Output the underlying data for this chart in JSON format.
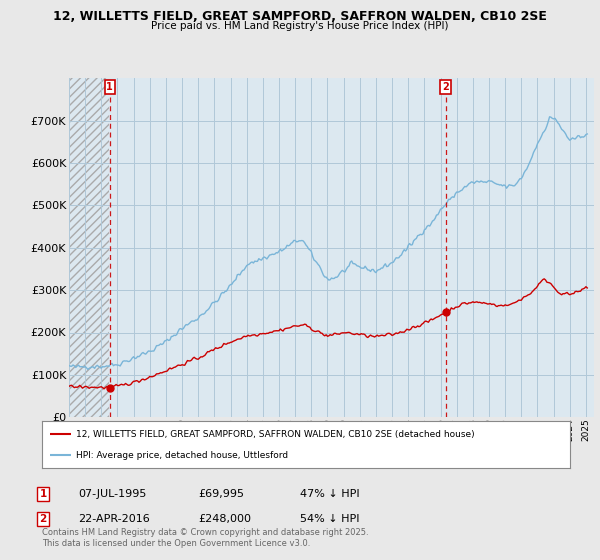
{
  "title": "12, WILLETTS FIELD, GREAT SAMPFORD, SAFFRON WALDEN, CB10 2SE",
  "subtitle": "Price paid vs. HM Land Registry's House Price Index (HPI)",
  "ylim": [
    0,
    800000
  ],
  "yticks": [
    0,
    100000,
    200000,
    300000,
    400000,
    500000,
    600000,
    700000
  ],
  "ytick_labels": [
    "£0",
    "£100K",
    "£200K",
    "£300K",
    "£400K",
    "£500K",
    "£600K",
    "£700K"
  ],
  "xlim_start": 1993.0,
  "xlim_end": 2025.5,
  "bg_color": "#e8e8e8",
  "plot_bg_color": "#dce8f0",
  "hpi_color": "#7ab5d8",
  "price_color": "#cc0000",
  "grid_color": "#b0c8d8",
  "marker1_x": 1995.52,
  "marker1_y": 69995,
  "marker2_x": 2016.31,
  "marker2_y": 248000,
  "marker1_date": "07-JUL-1995",
  "marker1_price": "£69,995",
  "marker1_hpi": "47% ↓ HPI",
  "marker2_date": "22-APR-2016",
  "marker2_price": "£248,000",
  "marker2_hpi": "54% ↓ HPI",
  "legend_line1": "12, WILLETTS FIELD, GREAT SAMPFORD, SAFFRON WALDEN, CB10 2SE (detached house)",
  "legend_line2": "HPI: Average price, detached house, Uttlesford",
  "footer": "Contains HM Land Registry data © Crown copyright and database right 2025.\nThis data is licensed under the Open Government Licence v3.0."
}
